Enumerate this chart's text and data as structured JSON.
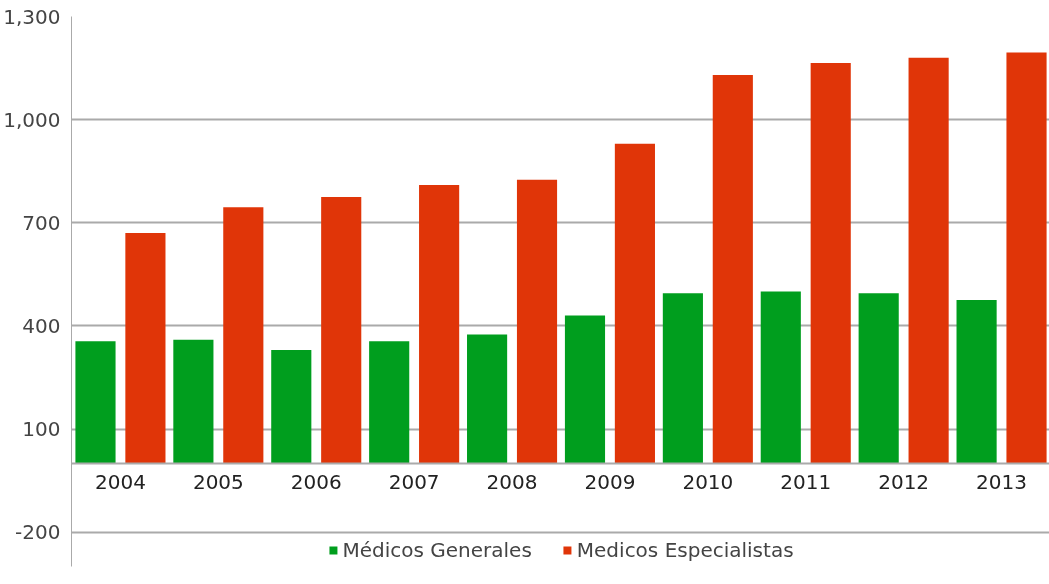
{
  "chart_data": {
    "type": "bar",
    "categories": [
      "2004",
      "2005",
      "2006",
      "2007",
      "2008",
      "2009",
      "2010",
      "2011",
      "2012",
      "2013"
    ],
    "series": [
      {
        "name": "Médicos Generales",
        "color": "#009e1e",
        "values": [
          355,
          360,
          330,
          355,
          375,
          430,
          495,
          500,
          495,
          475
        ]
      },
      {
        "name": "Medicos Especialistas",
        "color": "#e03508",
        "values": [
          670,
          745,
          775,
          810,
          825,
          930,
          1130,
          1165,
          1180,
          1195
        ]
      }
    ],
    "ylim": [
      -300,
      1300
    ],
    "yticks": [
      -200,
      100,
      400,
      700,
      {
        "value": 1000,
        "label": "1,000"
      },
      {
        "value": 1300,
        "label": "1,300"
      }
    ],
    "grid": "y",
    "legend": "bottom"
  }
}
